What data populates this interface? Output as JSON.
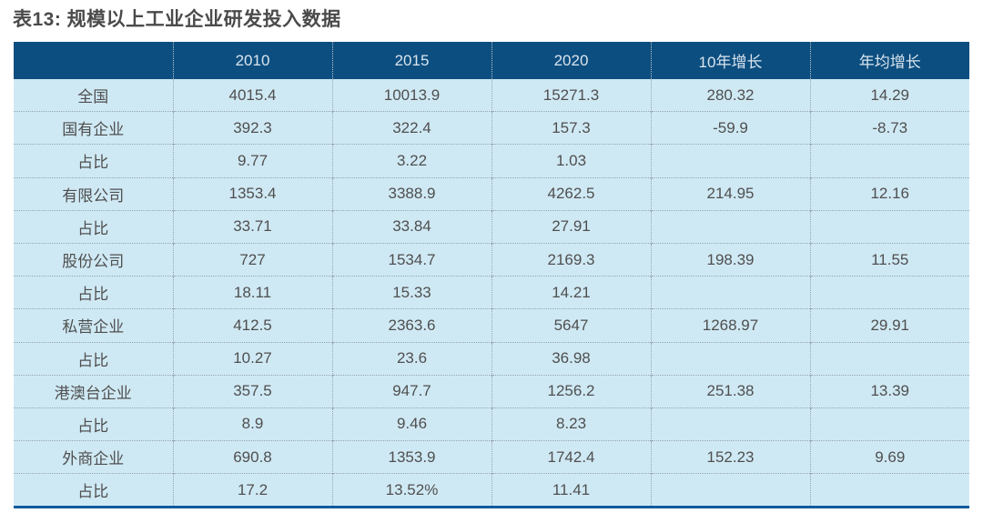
{
  "title": "表13: 规模以上工业企业研发投入数据",
  "table": {
    "columns": [
      "",
      "2010",
      "2015",
      "2020",
      "10年增长",
      "年均增长"
    ],
    "rows": [
      {
        "label": "全国",
        "values": [
          "4015.4",
          "10013.9",
          "15271.3",
          "280.32",
          "14.29"
        ]
      },
      {
        "label": "国有企业",
        "values": [
          "392.3",
          "322.4",
          "157.3",
          "-59.9",
          "-8.73"
        ]
      },
      {
        "label": "占比",
        "values": [
          "9.77",
          "3.22",
          "1.03",
          "",
          ""
        ]
      },
      {
        "label": "有限公司",
        "values": [
          "1353.4",
          "3388.9",
          "4262.5",
          "214.95",
          "12.16"
        ]
      },
      {
        "label": "占比",
        "values": [
          "33.71",
          "33.84",
          "27.91",
          "",
          ""
        ]
      },
      {
        "label": "股份公司",
        "values": [
          "727",
          "1534.7",
          "2169.3",
          "198.39",
          "11.55"
        ]
      },
      {
        "label": "占比",
        "values": [
          "18.11",
          "15.33",
          "14.21",
          "",
          ""
        ]
      },
      {
        "label": "私营企业",
        "values": [
          "412.5",
          "2363.6",
          "5647",
          "1268.97",
          "29.91"
        ]
      },
      {
        "label": "占比",
        "values": [
          "10.27",
          "23.6",
          "36.98",
          "",
          ""
        ]
      },
      {
        "label": "港澳台企业",
        "values": [
          "357.5",
          "947.7",
          "1256.2",
          "251.38",
          "13.39"
        ]
      },
      {
        "label": "占比",
        "values": [
          "8.9",
          "9.46",
          "8.23",
          "",
          ""
        ]
      },
      {
        "label": "外商企业",
        "values": [
          "690.8",
          "1353.9",
          "1742.4",
          "152.23",
          "9.69"
        ]
      },
      {
        "label": "占比",
        "values": [
          "17.2",
          "13.52%",
          "11.41",
          "",
          ""
        ]
      }
    ]
  },
  "colors": {
    "header_bg": "#0d4e80",
    "header_text": "#d9e5ee",
    "row_bg": "#cfe9f4",
    "row_text": "#4f4f4f",
    "divider": "#95a4ae",
    "bottom_border": "#0f5c9b",
    "title_color": "#4a4a4a"
  }
}
